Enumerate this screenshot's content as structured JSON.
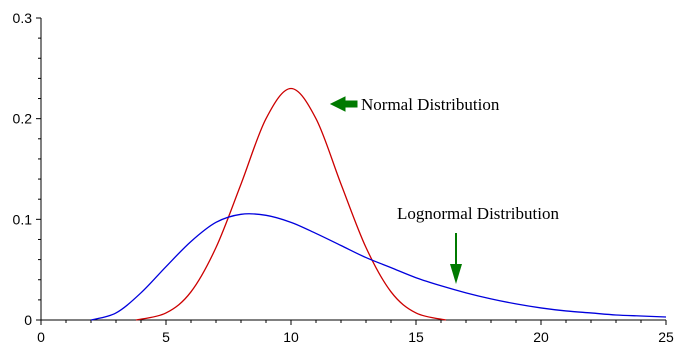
{
  "chart_data": {
    "type": "line",
    "title": "",
    "xlabel": "",
    "ylabel": "",
    "xlim": [
      0,
      25
    ],
    "ylim": [
      0,
      0.3
    ],
    "x_ticks": [
      0,
      5,
      10,
      15,
      20,
      25
    ],
    "x_tick_labels": [
      "0",
      "5",
      "10",
      "15",
      "20",
      "25"
    ],
    "y_ticks": [
      0,
      0.1,
      0.2,
      0.3
    ],
    "y_tick_labels": [
      "0",
      "0.1",
      "0.2",
      "0.3"
    ],
    "grid": false,
    "legend": "none",
    "series": [
      {
        "color": "#cc0000",
        "x": [
          3.8,
          5,
          6,
          7,
          8,
          9,
          10,
          11,
          12,
          13,
          14,
          15,
          16.2
        ],
        "y": [
          0.0,
          0.007,
          0.028,
          0.072,
          0.135,
          0.2,
          0.23,
          0.2,
          0.135,
          0.072,
          0.028,
          0.007,
          0.0
        ]
      },
      {
        "color": "#0000dd",
        "x": [
          2,
          3,
          4,
          5,
          6,
          7,
          8,
          9,
          10,
          11,
          12,
          13,
          14,
          15,
          16,
          17,
          18,
          19,
          20,
          21,
          22,
          23,
          24,
          25
        ],
        "y": [
          0.0,
          0.007,
          0.027,
          0.053,
          0.078,
          0.097,
          0.105,
          0.104,
          0.097,
          0.086,
          0.074,
          0.062,
          0.052,
          0.042,
          0.034,
          0.027,
          0.021,
          0.016,
          0.012,
          0.009,
          0.007,
          0.005,
          0.004,
          0.003
        ]
      }
    ],
    "annotations": [
      {
        "text": "Normal Distribution",
        "arrow_color": "#007a00"
      },
      {
        "text": "Lognormal Distribution",
        "arrow_color": "#007a00"
      }
    ]
  }
}
